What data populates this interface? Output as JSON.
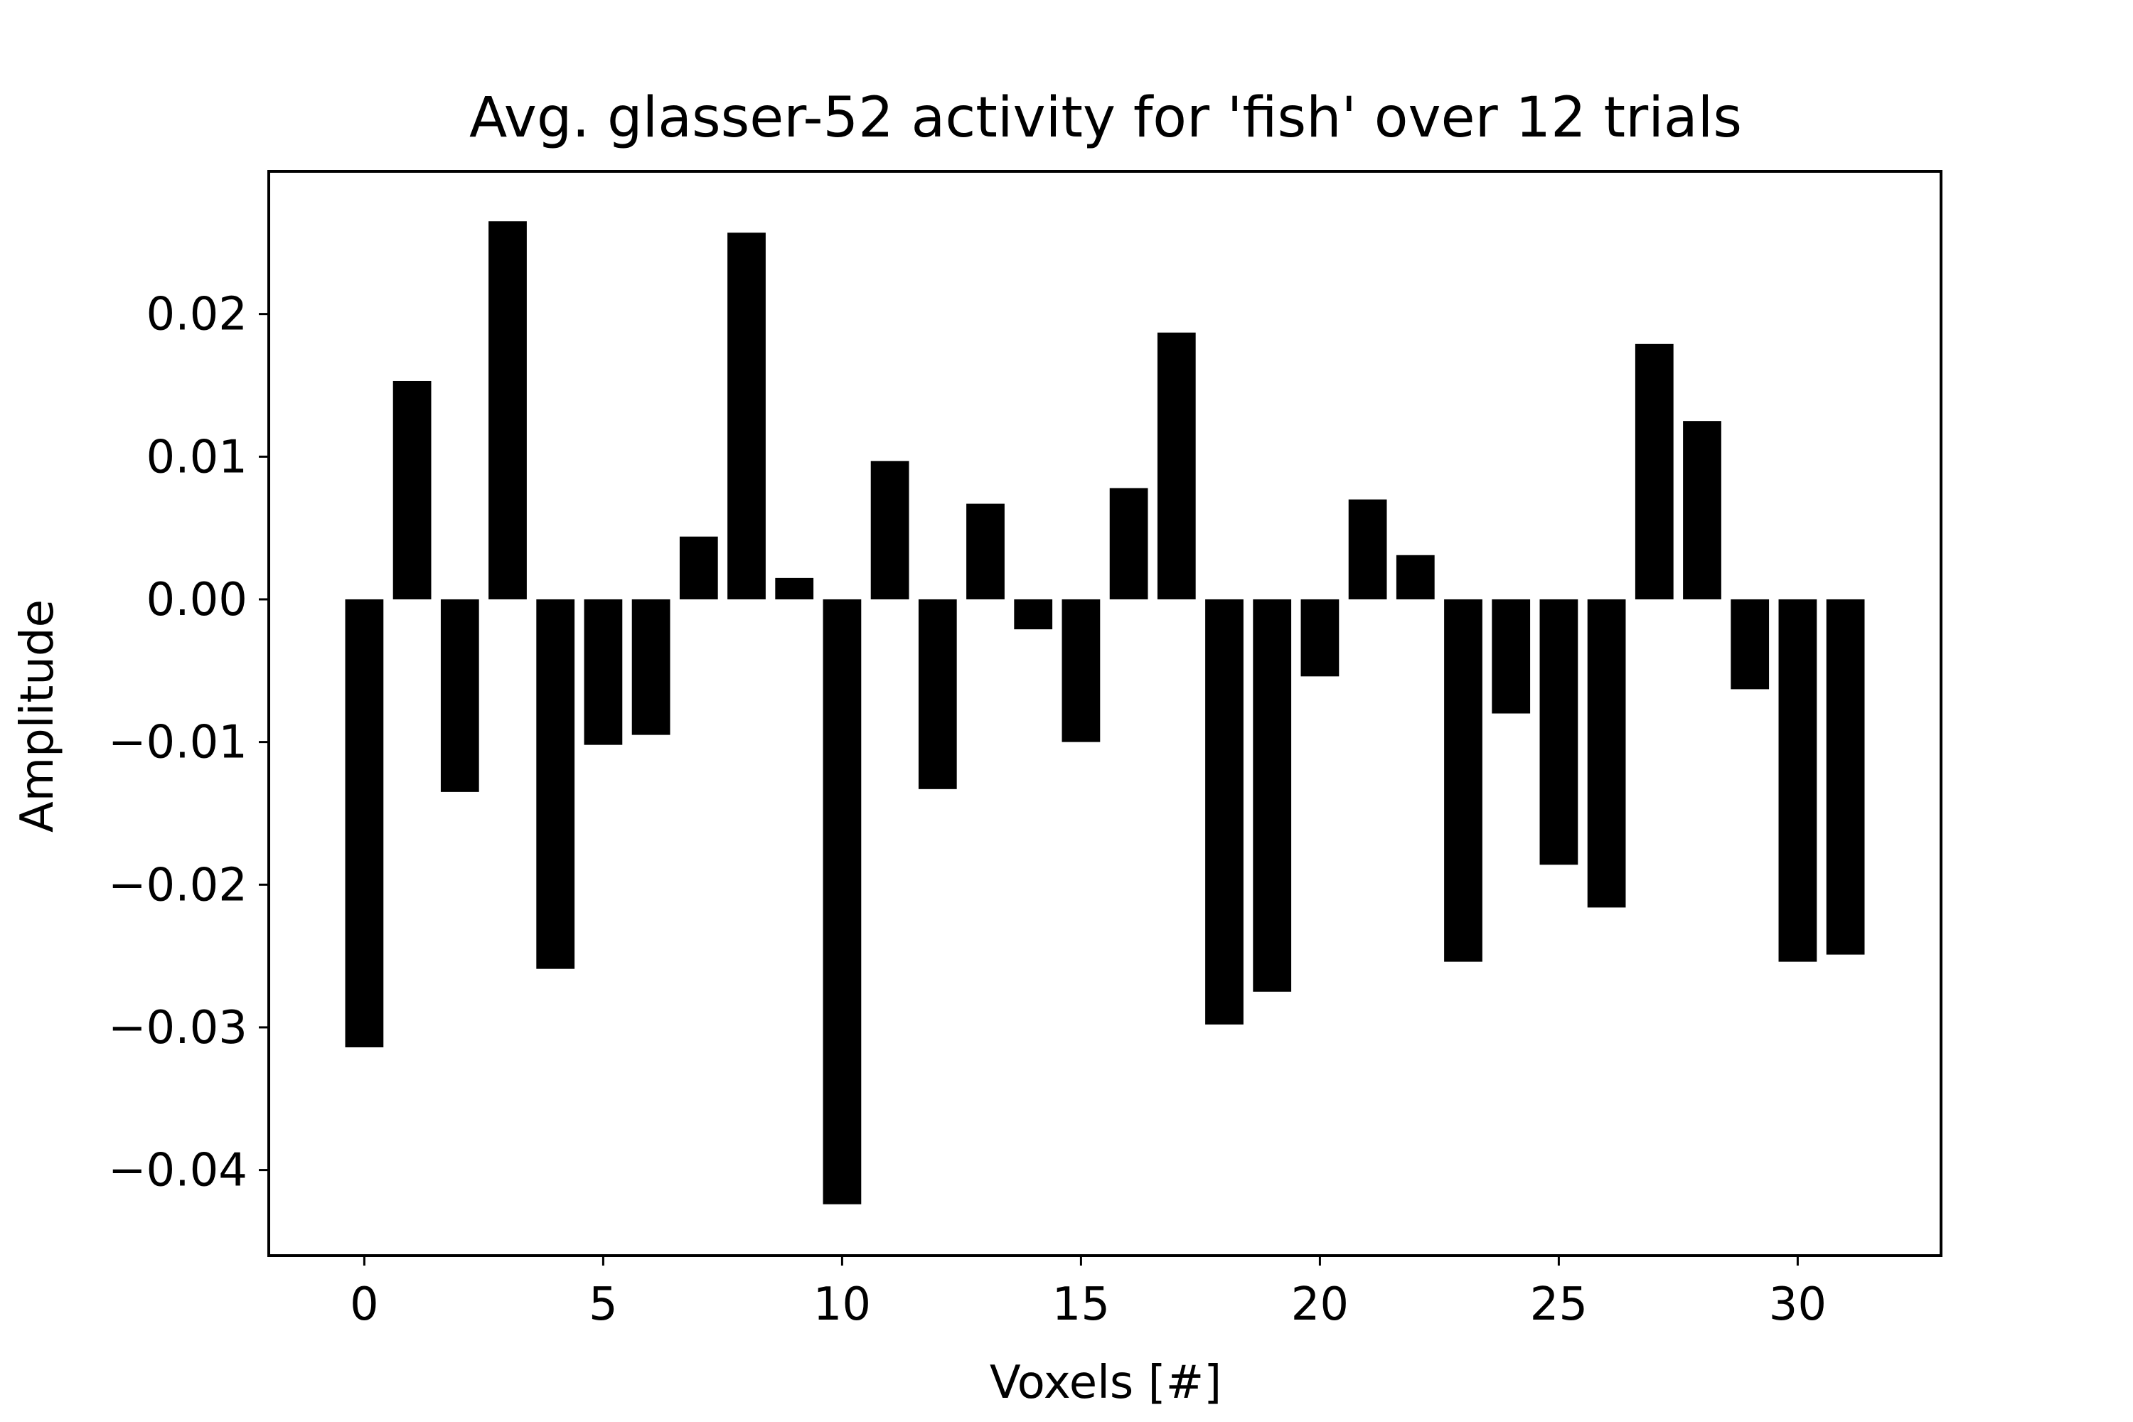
{
  "chart_data": {
    "type": "bar",
    "title": "Avg. glasser-52 activity for 'fish' over 12 trials",
    "xlabel": "Voxels [#]",
    "ylabel": "Amplitude",
    "x": [
      0,
      1,
      2,
      3,
      4,
      5,
      6,
      7,
      8,
      9,
      10,
      11,
      12,
      13,
      14,
      15,
      16,
      17,
      18,
      19,
      20,
      21,
      22,
      23,
      24,
      25,
      26,
      27,
      28,
      29,
      30,
      31
    ],
    "values": [
      -0.0314,
      0.0153,
      -0.0135,
      0.0265,
      -0.0259,
      -0.0102,
      -0.0095,
      0.0044,
      0.0257,
      0.0015,
      -0.0424,
      0.0097,
      -0.0133,
      0.0067,
      -0.0021,
      -0.01,
      0.0078,
      0.0187,
      -0.0298,
      -0.0275,
      -0.0054,
      0.007,
      0.0031,
      -0.0254,
      -0.008,
      -0.0186,
      -0.0216,
      0.0179,
      0.0125,
      -0.0063,
      -0.0254,
      -0.0249
    ],
    "xlim": [
      -2,
      33
    ],
    "ylim": [
      -0.046,
      0.03
    ],
    "xticks": [
      0,
      5,
      10,
      15,
      20,
      25,
      30
    ],
    "xtick_labels": [
      "0",
      "5",
      "10",
      "15",
      "20",
      "25",
      "30"
    ],
    "yticks": [
      0.02,
      0.01,
      0.0,
      -0.01,
      -0.02,
      -0.03,
      -0.04
    ],
    "ytick_labels": [
      "0.02",
      "0.01",
      "0.00",
      "−0.01",
      "−0.02",
      "−0.03",
      "−0.04"
    ],
    "bar_color": "#000000",
    "grid": false,
    "legend": null
  }
}
